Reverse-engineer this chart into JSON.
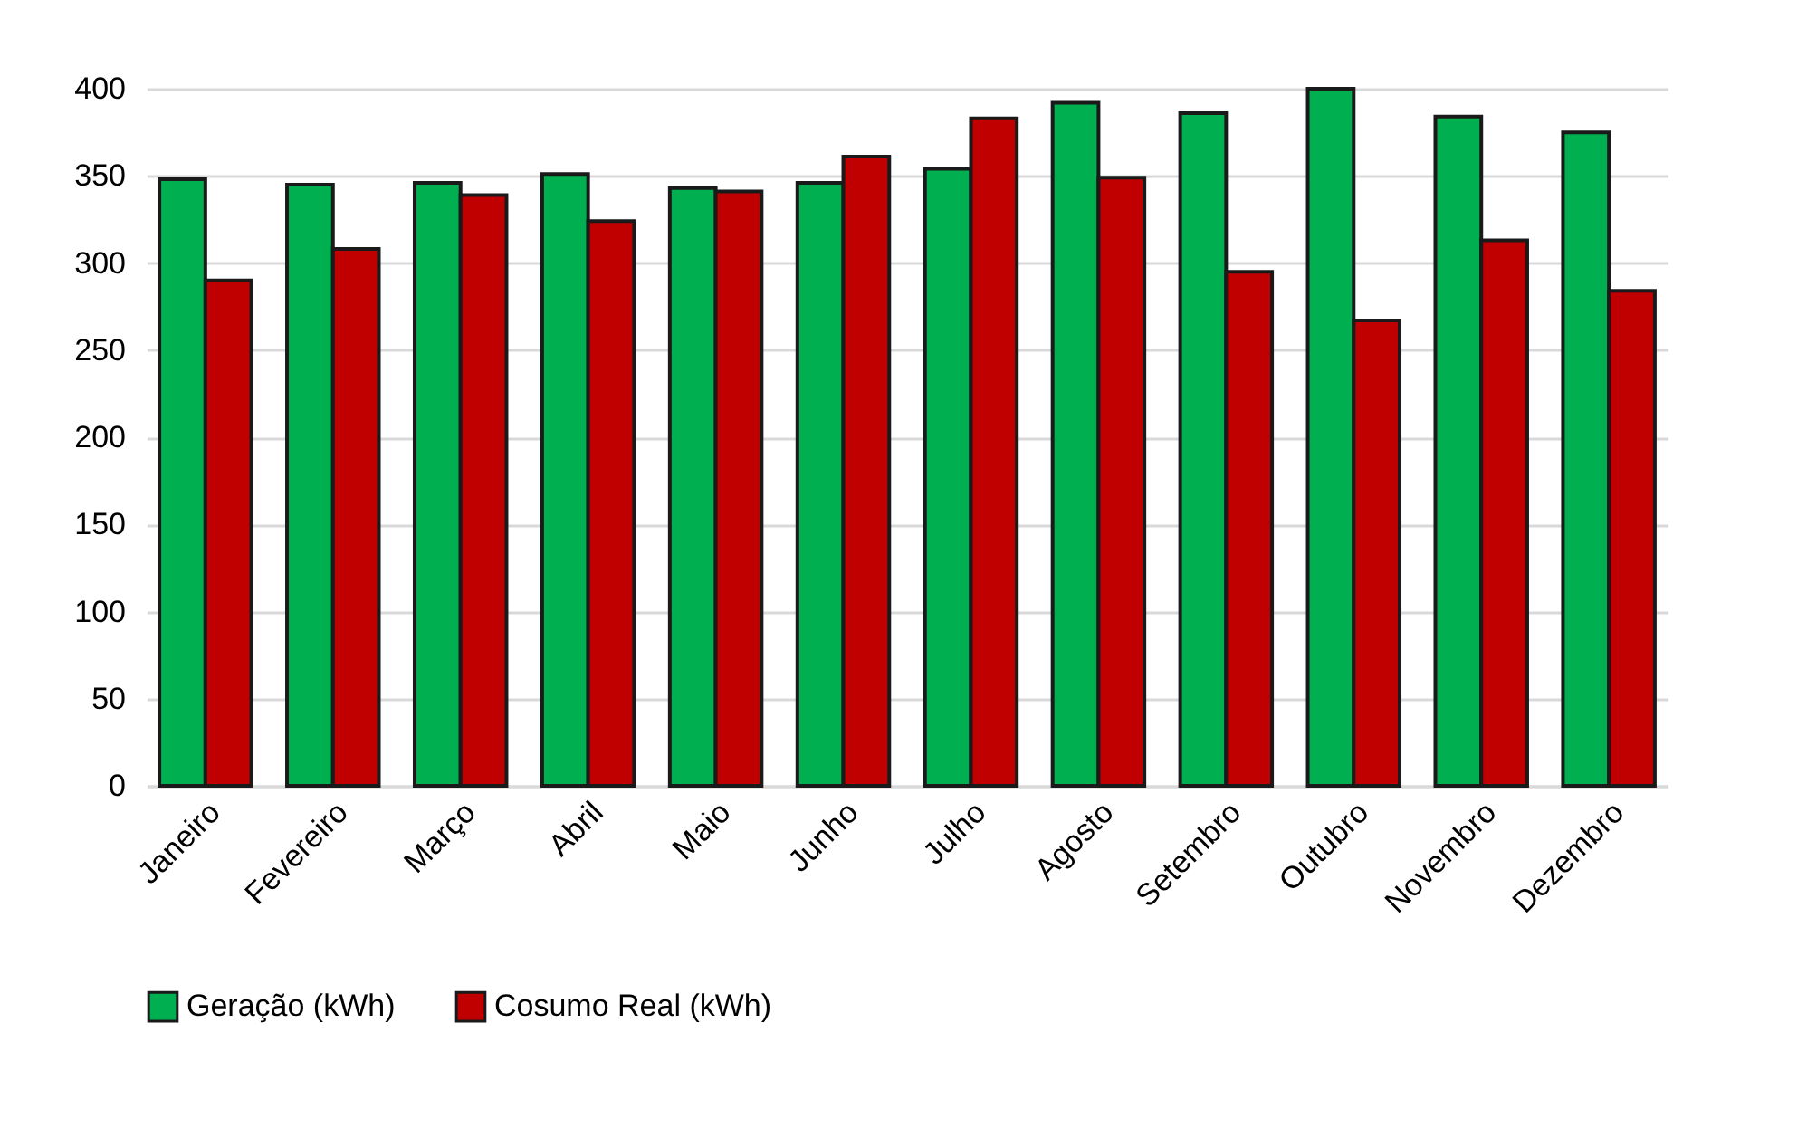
{
  "chart_data": {
    "type": "bar",
    "categories": [
      "Janeiro",
      "Fevereiro",
      "Março",
      "Abril",
      "Maio",
      "Junho",
      "Julho",
      "Agosto",
      "Setembro",
      "Outubro",
      "Novembro",
      "Dezembro"
    ],
    "series": [
      {
        "name": "Geração (kWh)",
        "color": "#00b050",
        "values": [
          348,
          345,
          346,
          351,
          343,
          346,
          354,
          392,
          386,
          400,
          384,
          375
        ]
      },
      {
        "name": "Cosumo Real (kWh)",
        "color": "#c00000",
        "values": [
          290,
          308,
          339,
          324,
          341,
          361,
          383,
          349,
          295,
          267,
          313,
          284
        ]
      }
    ],
    "ylim": [
      0,
      400
    ],
    "yticks": [
      0,
      50,
      100,
      150,
      200,
      250,
      300,
      350,
      400
    ],
    "grid": "y",
    "legend": "bottom"
  }
}
